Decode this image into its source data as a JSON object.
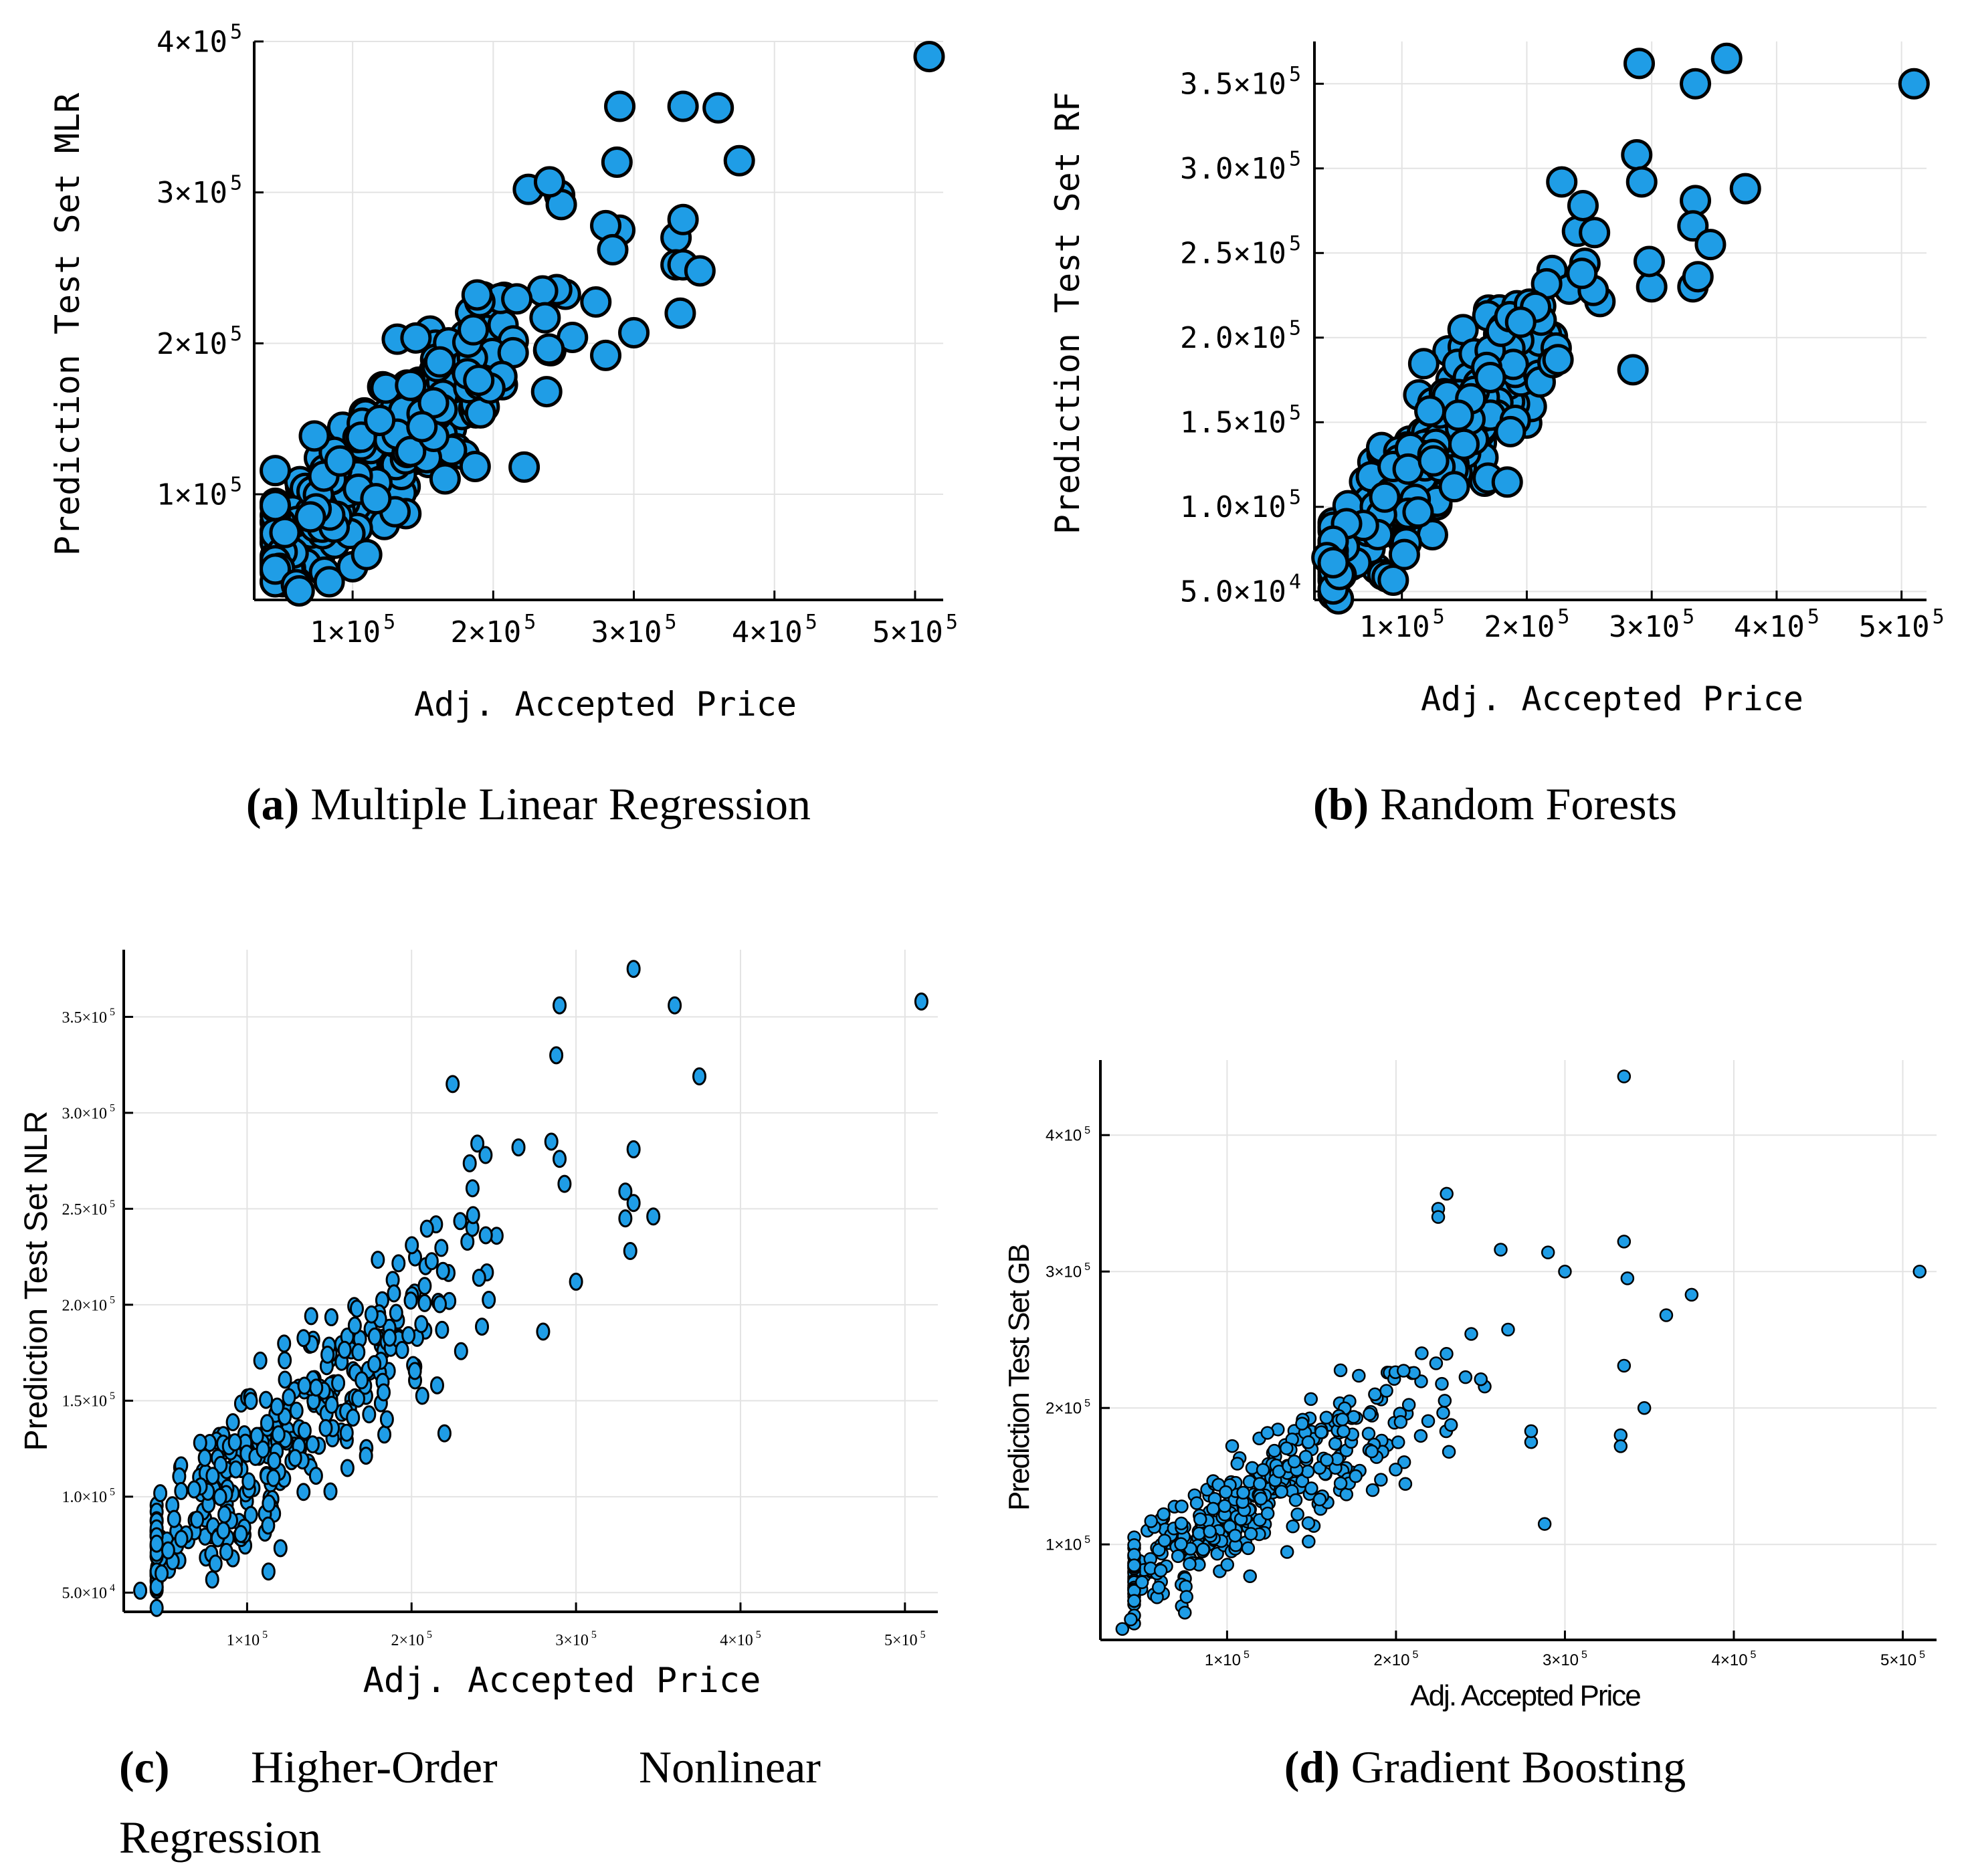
{
  "colors": {
    "marker_fill": "#1f9de6",
    "marker_edge": "#000000",
    "grid": "#e3e3e3"
  },
  "chart_data": [
    {
      "id": "a",
      "type": "scatter",
      "ylabel": "Prediction Test Set MLR",
      "xlabel": "Adj. Accepted Price",
      "xlim": [
        30000,
        520000
      ],
      "ylim": [
        30000,
        400000
      ],
      "xticks": [
        {
          "v": 100000,
          "m": "1",
          "e": "5"
        },
        {
          "v": 200000,
          "m": "2",
          "e": "5"
        },
        {
          "v": 300000,
          "m": "3",
          "e": "5"
        },
        {
          "v": 400000,
          "m": "4",
          "e": "5"
        },
        {
          "v": 500000,
          "m": "5",
          "e": "5"
        }
      ],
      "yticks": [
        {
          "v": 100000,
          "m": "1",
          "e": "5"
        },
        {
          "v": 200000,
          "m": "2",
          "e": "5"
        },
        {
          "v": 300000,
          "m": "3",
          "e": "5"
        },
        {
          "v": 400000,
          "m": "4",
          "e": "5"
        }
      ],
      "caption": {
        "label": "(a)",
        "text": " Multiple Linear Regression"
      },
      "highlights": [
        [
          510000,
          390000
        ],
        [
          290000,
          357000
        ],
        [
          335000,
          357000
        ],
        [
          360000,
          356000
        ],
        [
          375000,
          321000
        ],
        [
          288000,
          320000
        ],
        [
          330000,
          270000
        ],
        [
          335000,
          282000
        ],
        [
          330000,
          252000
        ],
        [
          335000,
          252000
        ],
        [
          347000,
          248000
        ],
        [
          333000,
          220000
        ],
        [
          300000,
          207000
        ],
        [
          280000,
          192000
        ],
        [
          222000,
          118000
        ],
        [
          238000,
          168000
        ],
        [
          225000,
          302000
        ],
        [
          240000,
          307000
        ],
        [
          290000,
          275000
        ],
        [
          280000,
          278000
        ],
        [
          285000,
          262000
        ],
        [
          60000,
          40000
        ],
        [
          62000,
          36000
        ],
        [
          100000,
          52000
        ],
        [
          110000,
          60000
        ],
        [
          70000,
          85000
        ]
      ]
    },
    {
      "id": "b",
      "type": "scatter",
      "ylabel": "Prediction Test Set RF",
      "xlabel": "Adj. Accepted Price",
      "xlim": [
        30000,
        520000
      ],
      "ylim": [
        45000,
        375000
      ],
      "xticks": [
        {
          "v": 100000,
          "m": "1",
          "e": "5"
        },
        {
          "v": 200000,
          "m": "2",
          "e": "5"
        },
        {
          "v": 300000,
          "m": "3",
          "e": "5"
        },
        {
          "v": 400000,
          "m": "4",
          "e": "5"
        },
        {
          "v": 500000,
          "m": "5",
          "e": "5"
        }
      ],
      "yticks": [
        {
          "v": 50000,
          "m": "5.0",
          "e": "4"
        },
        {
          "v": 100000,
          "m": "1.0",
          "e": "5"
        },
        {
          "v": 150000,
          "m": "1.5",
          "e": "5"
        },
        {
          "v": 200000,
          "m": "2.0",
          "e": "5"
        },
        {
          "v": 250000,
          "m": "2.5",
          "e": "5"
        },
        {
          "v": 300000,
          "m": "3.0",
          "e": "5"
        },
        {
          "v": 350000,
          "m": "3.5",
          "e": "5"
        }
      ],
      "caption": {
        "label": "(b)",
        "text": " Random Forests"
      },
      "highlights": [
        [
          510000,
          350000
        ],
        [
          290000,
          362000
        ],
        [
          360000,
          365000
        ],
        [
          335000,
          350000
        ],
        [
          375000,
          288000
        ],
        [
          288000,
          308000
        ],
        [
          292000,
          292000
        ],
        [
          335000,
          281000
        ],
        [
          333000,
          266000
        ],
        [
          347000,
          255000
        ],
        [
          333000,
          230000
        ],
        [
          337000,
          236000
        ],
        [
          300000,
          230000
        ],
        [
          285000,
          181000
        ],
        [
          228000,
          292000
        ],
        [
          245000,
          278000
        ],
        [
          298000,
          245000
        ],
        [
          40000,
          70000
        ],
        [
          50000,
          60000
        ],
        [
          45000,
          67000
        ],
        [
          225000,
          187000
        ]
      ]
    },
    {
      "id": "c",
      "type": "scatter",
      "ylabel": "Prediction Test Set NLR",
      "xlabel": "Adj. Accepted Price",
      "xlim": [
        25000,
        520000
      ],
      "ylim": [
        40000,
        385000
      ],
      "xticks": [
        {
          "v": 100000,
          "m": "1",
          "e": "5"
        },
        {
          "v": 200000,
          "m": "2",
          "e": "5"
        },
        {
          "v": 300000,
          "m": "3",
          "e": "5"
        },
        {
          "v": 400000,
          "m": "4",
          "e": "5"
        },
        {
          "v": 500000,
          "m": "5",
          "e": "5"
        }
      ],
      "yticks": [
        {
          "v": 50000,
          "m": "5.0",
          "e": "4"
        },
        {
          "v": 100000,
          "m": "1.0",
          "e": "5"
        },
        {
          "v": 150000,
          "m": "1.5",
          "e": "5"
        },
        {
          "v": 200000,
          "m": "2.0",
          "e": "5"
        },
        {
          "v": 250000,
          "m": "2.5",
          "e": "5"
        },
        {
          "v": 300000,
          "m": "3.0",
          "e": "5"
        },
        {
          "v": 350000,
          "m": "3.5",
          "e": "5"
        }
      ],
      "caption": {
        "label": "(c)",
        "text": "Higher-Order Nonlinear Regression"
      },
      "highlights": [
        [
          510000,
          358000
        ],
        [
          335000,
          375000
        ],
        [
          360000,
          356000
        ],
        [
          290000,
          356000
        ],
        [
          375000,
          319000
        ],
        [
          288000,
          330000
        ],
        [
          225000,
          315000
        ],
        [
          335000,
          281000
        ],
        [
          330000,
          259000
        ],
        [
          335000,
          253000
        ],
        [
          347000,
          246000
        ],
        [
          330000,
          245000
        ],
        [
          333000,
          228000
        ],
        [
          300000,
          212000
        ],
        [
          293000,
          263000
        ],
        [
          280000,
          186000
        ],
        [
          220000,
          133000
        ],
        [
          285000,
          285000
        ],
        [
          290000,
          276000
        ],
        [
          265000,
          282000
        ],
        [
          240000,
          284000
        ],
        [
          245000,
          278000
        ],
        [
          35000,
          51000
        ],
        [
          48000,
          60000
        ],
        [
          52000,
          72000
        ],
        [
          113000,
          61000
        ],
        [
          60000,
          78000
        ]
      ]
    },
    {
      "id": "d",
      "type": "scatter",
      "ylabel": "Prediction Test Set GB",
      "xlabel": "Adj. Accepted Price",
      "xlim": [
        25000,
        520000
      ],
      "ylim": [
        30000,
        455000
      ],
      "xticks": [
        {
          "v": 100000,
          "m": "1",
          "e": "5"
        },
        {
          "v": 200000,
          "m": "2",
          "e": "5"
        },
        {
          "v": 300000,
          "m": "3",
          "e": "5"
        },
        {
          "v": 400000,
          "m": "4",
          "e": "5"
        },
        {
          "v": 500000,
          "m": "5",
          "e": "5"
        }
      ],
      "yticks": [
        {
          "v": 100000,
          "m": "1",
          "e": "5"
        },
        {
          "v": 200000,
          "m": "2",
          "e": "5"
        },
        {
          "v": 300000,
          "m": "3",
          "e": "5"
        },
        {
          "v": 400000,
          "m": "4",
          "e": "5"
        }
      ],
      "caption": {
        "label": "(d)",
        "text": " Gradient Boosting"
      },
      "highlights": [
        [
          510000,
          300000
        ],
        [
          335000,
          443000
        ],
        [
          290000,
          314000
        ],
        [
          300000,
          300000
        ],
        [
          335000,
          322000
        ],
        [
          337000,
          295000
        ],
        [
          360000,
          268000
        ],
        [
          375000,
          283000
        ],
        [
          335000,
          231000
        ],
        [
          347000,
          200000
        ],
        [
          333000,
          180000
        ],
        [
          333000,
          172000
        ],
        [
          288000,
          115000
        ],
        [
          230000,
          357000
        ],
        [
          225000,
          346000
        ],
        [
          225000,
          340000
        ],
        [
          262000,
          316000
        ],
        [
          280000,
          175000
        ],
        [
          280000,
          183000
        ],
        [
          38000,
          38000
        ],
        [
          43000,
          45000
        ],
        [
          55000,
          117000
        ],
        [
          75000,
          50000
        ]
      ]
    }
  ]
}
